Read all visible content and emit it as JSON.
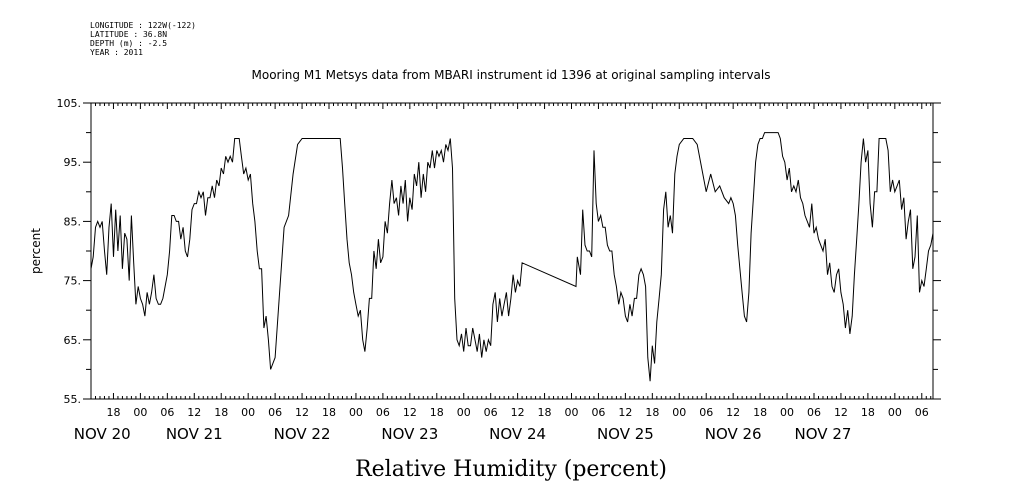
{
  "metadata": {
    "longitude": "LONGITUDE : 122W(-122)",
    "latitude": "LATITUDE : 36.8N",
    "depth": "DEPTH (m) : -2.5",
    "year": "YEAR : 2011"
  },
  "chart_data": {
    "type": "line",
    "title": "Mooring M1 Metsys data from MBARI instrument id 1396 at original sampling intervals",
    "xlabel": "Relative Humidity (percent)",
    "ylabel": "percent",
    "ylim": [
      55,
      105
    ],
    "yticks": [
      "55.",
      "65.",
      "75.",
      "85.",
      "95.",
      "105."
    ],
    "xlim": [
      13,
      200.5
    ],
    "hour_ticks": [
      {
        "h": 18,
        "label": "18"
      },
      {
        "h": 24,
        "label": "00"
      },
      {
        "h": 30,
        "label": "06"
      },
      {
        "h": 36,
        "label": "12"
      },
      {
        "h": 42,
        "label": "18"
      },
      {
        "h": 48,
        "label": "00"
      },
      {
        "h": 54,
        "label": "06"
      },
      {
        "h": 60,
        "label": "12"
      },
      {
        "h": 66,
        "label": "18"
      },
      {
        "h": 72,
        "label": "00"
      },
      {
        "h": 78,
        "label": "06"
      },
      {
        "h": 84,
        "label": "12"
      },
      {
        "h": 90,
        "label": "18"
      },
      {
        "h": 96,
        "label": "00"
      },
      {
        "h": 102,
        "label": "06"
      },
      {
        "h": 108,
        "label": "12"
      },
      {
        "h": 114,
        "label": "18"
      },
      {
        "h": 120,
        "label": "00"
      },
      {
        "h": 126,
        "label": "06"
      },
      {
        "h": 132,
        "label": "12"
      },
      {
        "h": 138,
        "label": "18"
      },
      {
        "h": 144,
        "label": "00"
      },
      {
        "h": 150,
        "label": "06"
      },
      {
        "h": 156,
        "label": "12"
      },
      {
        "h": 162,
        "label": "18"
      },
      {
        "h": 168,
        "label": "00"
      },
      {
        "h": 174,
        "label": "06"
      },
      {
        "h": 180,
        "label": "12"
      },
      {
        "h": 186,
        "label": "18"
      },
      {
        "h": 192,
        "label": "00"
      },
      {
        "h": 198,
        "label": "06"
      }
    ],
    "day_labels": [
      {
        "h": 15.5,
        "label": "NOV 20"
      },
      {
        "h": 36,
        "label": "NOV 21"
      },
      {
        "h": 60,
        "label": "NOV 22"
      },
      {
        "h": 84,
        "label": "NOV 23"
      },
      {
        "h": 108,
        "label": "NOV 24"
      },
      {
        "h": 132,
        "label": "NOV 25"
      },
      {
        "h": 156,
        "label": "NOV 26"
      },
      {
        "h": 176,
        "label": "NOV 27"
      }
    ],
    "grid": false,
    "series": [
      {
        "x": [
          13,
          13.5,
          14,
          14.5,
          15,
          15.5,
          16,
          16.5,
          17,
          17.5,
          18,
          18.5,
          19,
          19.5,
          20,
          20.5,
          21,
          21.5,
          22,
          22.5,
          23,
          23.5,
          24,
          24.5,
          25,
          25.5,
          26,
          26.5,
          27,
          27.5,
          28,
          28.5,
          29,
          29.5,
          30,
          30.5,
          31,
          31.5,
          32,
          32.5,
          33,
          33.5,
          34,
          34.5,
          35,
          35.5,
          36,
          36.5,
          37,
          37.5,
          38,
          38.5,
          39,
          39.5,
          40,
          40.5,
          41,
          41.5,
          42,
          42.5,
          43,
          43.5,
          44,
          44.5,
          45,
          45.5,
          46,
          46.5,
          47,
          47.5,
          48,
          48.5,
          49,
          49.5,
          50,
          50.5,
          51,
          51.5,
          52,
          52.5,
          53,
          54,
          55,
          56,
          57,
          58,
          59,
          60,
          61,
          62,
          63,
          64,
          65,
          66,
          67,
          67.5,
          68,
          68.5,
          69,
          69.5,
          70,
          70.5,
          71,
          71.5,
          72,
          72.5,
          73,
          73.5,
          74,
          74.5,
          75,
          75.5,
          76,
          76.5,
          77,
          77.5,
          78,
          78.5,
          79,
          79.5,
          80,
          80.5,
          81,
          81.5,
          82,
          82.5,
          83,
          83.5,
          84,
          84.5,
          85,
          85.5,
          86,
          86.5,
          87,
          87.5,
          88,
          88.5,
          89,
          89.5,
          90,
          90.5,
          91,
          91.5,
          92,
          92.5,
          93,
          93.5,
          94,
          94.5,
          95,
          95.5,
          96,
          96.5,
          97,
          97.5,
          98,
          98.5,
          99,
          99.5,
          100,
          100.5,
          101,
          101.5,
          102,
          102.5,
          103,
          103.5,
          104,
          104.5,
          105,
          105.5,
          106,
          106.5,
          107,
          107.5,
          108,
          108.5,
          109,
          121,
          121.3,
          122,
          122.5,
          123,
          123.5,
          124,
          124.5,
          125,
          125.5,
          126,
          126.5,
          127,
          127.5,
          128,
          128.5,
          129,
          129.5,
          130,
          130.5,
          131,
          131.5,
          132,
          132.5,
          133,
          133.5,
          134,
          134.5,
          135,
          135.5,
          136,
          136.5,
          137,
          137.5,
          138,
          138.5,
          139,
          139.5,
          140,
          140.5,
          141,
          141.5,
          142,
          142.5,
          143,
          143.5,
          144,
          145,
          146,
          147,
          148,
          149,
          150,
          151,
          152,
          153,
          154,
          155,
          155.5,
          156,
          156.5,
          157,
          157.5,
          158,
          158.5,
          159,
          159.5,
          160,
          160.5,
          161,
          161.5,
          162,
          162.5,
          163,
          163.5,
          164,
          164.5,
          165,
          165.5,
          166,
          166.5,
          167,
          167.5,
          168,
          168.5,
          169,
          169.5,
          170,
          170.5,
          171,
          171.5,
          172,
          172.5,
          173,
          173.5,
          174,
          174.5,
          175,
          175.5,
          176,
          176.5,
          177,
          177.5,
          178,
          178.5,
          179,
          179.5,
          180,
          180.5,
          181,
          181.5,
          182,
          182.5,
          183,
          183.5,
          184,
          184.5,
          185,
          185.5,
          186,
          186.5,
          187,
          187.5,
          188,
          188.5,
          189,
          189.5,
          190,
          190.5,
          191,
          191.5,
          192,
          192.5,
          193,
          193.5,
          194,
          194.5,
          195,
          195.5,
          196,
          196.5,
          197,
          197.5,
          198,
          198.5,
          199,
          199.5,
          200,
          200.5
        ],
        "values": [
          77,
          79,
          84,
          85,
          84,
          85,
          80,
          76,
          84,
          88,
          79,
          87,
          80,
          86,
          77,
          83,
          82,
          75,
          86,
          78,
          71,
          74,
          72,
          71,
          69,
          73,
          71,
          73,
          76,
          72,
          71,
          71,
          72,
          74,
          76,
          80,
          86,
          86,
          85,
          85,
          82,
          84,
          80,
          79,
          82,
          87,
          88,
          88,
          90,
          89,
          90,
          86,
          89,
          89,
          91,
          89,
          92,
          91,
          94,
          93,
          96,
          95,
          96,
          95,
          99,
          99,
          99,
          96,
          93,
          94,
          92,
          93,
          88,
          85,
          80,
          77,
          77,
          67,
          69,
          65,
          60,
          62,
          73,
          84,
          86,
          93,
          98,
          99,
          99,
          99,
          99,
          99,
          99,
          99,
          99,
          99,
          99,
          99,
          94,
          88,
          82,
          78,
          76,
          73,
          71,
          69,
          70,
          65,
          63,
          67,
          72,
          72,
          80,
          77,
          82,
          78,
          79,
          85,
          83,
          88,
          92,
          88,
          89,
          86,
          91,
          88,
          92,
          85,
          89,
          87,
          93,
          91,
          95,
          89,
          93,
          90,
          95,
          94,
          97,
          94,
          97,
          96,
          97,
          95,
          98,
          97,
          99,
          94,
          72,
          65,
          64,
          66,
          63,
          67,
          64,
          64,
          67,
          65,
          63,
          66,
          62,
          65,
          63,
          65,
          64,
          71,
          73,
          68,
          72,
          69,
          71,
          73,
          69,
          72,
          76,
          73,
          75,
          74,
          78,
          74,
          79,
          76,
          87,
          81,
          80,
          80,
          79,
          97,
          88,
          85,
          86,
          84,
          84,
          81,
          80,
          80,
          76,
          74,
          71,
          73,
          72,
          69,
          68,
          71,
          69,
          72,
          72,
          76,
          77,
          76,
          74,
          62,
          58,
          64,
          61,
          68,
          72,
          76,
          87,
          90,
          84,
          86,
          83,
          93,
          96,
          98,
          99,
          99,
          99,
          98,
          94,
          90,
          93,
          90,
          91,
          89,
          88,
          89,
          88,
          86,
          81,
          77,
          73,
          69,
          68,
          73,
          83,
          89,
          95,
          98,
          99,
          99,
          100,
          100,
          100,
          100,
          100,
          100,
          100,
          99,
          96,
          95,
          92,
          94,
          90,
          91,
          90,
          92,
          89,
          88,
          86,
          85,
          84,
          88,
          83,
          84,
          82,
          81,
          80,
          82,
          76,
          78,
          74,
          73,
          76,
          77,
          73,
          71,
          67,
          70,
          66,
          69,
          76,
          82,
          88,
          95,
          99,
          95,
          97,
          88,
          84,
          90,
          90,
          99,
          99,
          99,
          99,
          97,
          90,
          92,
          90,
          91,
          92,
          87,
          89,
          82,
          85,
          87,
          77,
          79,
          86,
          73,
          75,
          74,
          77,
          80,
          81,
          83
        ]
      }
    ]
  }
}
